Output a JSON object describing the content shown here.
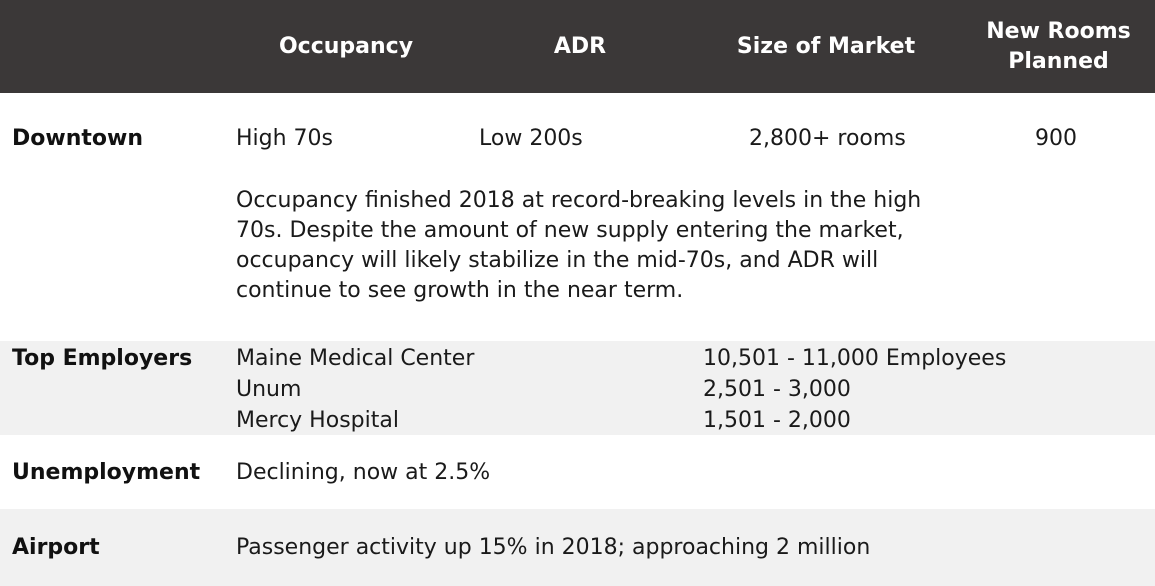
{
  "header": {
    "occupancy": "Occupancy",
    "adr": "ADR",
    "size_of_market": "Size of Market",
    "new_rooms_planned": "New Rooms\nPlanned"
  },
  "downtown": {
    "label": "Downtown",
    "occupancy": "High 70s",
    "adr": "Low 200s",
    "size_of_market": "2,800+ rooms",
    "new_rooms_planned": "900",
    "description": "Occupancy finished 2018 at record-breaking levels in the high 70s. Despite the amount of new supply entering the market, occupancy will likely stabilize in the mid-70s, and ADR will continue to see growth in the near term."
  },
  "top_employers": {
    "label": "Top Employers",
    "rows": [
      {
        "name": "Maine Medical Center",
        "count": "10,501 - 11,000 Employees"
      },
      {
        "name": "Unum",
        "count": "2,501 - 3,000"
      },
      {
        "name": "Mercy Hospital",
        "count": "1,501 - 2,000"
      }
    ]
  },
  "unemployment": {
    "label": "Unemployment",
    "value": "Declining, now at 2.5%"
  },
  "airport": {
    "label": "Airport",
    "value": "Passenger activity up 15% in 2018; approaching 2 million"
  },
  "colors": {
    "header_bg": "#3b3838",
    "header_text": "#ffffff",
    "band_bg": "#f1f1f1"
  }
}
